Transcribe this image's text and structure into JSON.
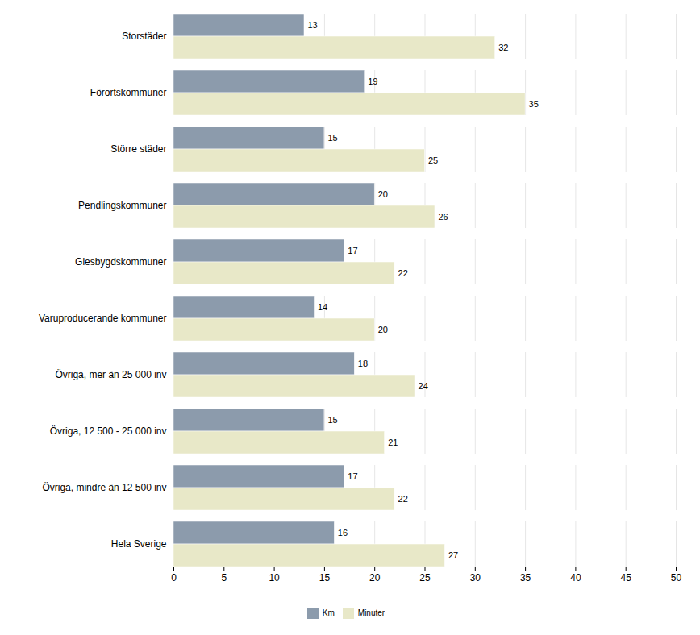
{
  "chart_data": {
    "type": "bar",
    "orientation": "horizontal",
    "categories": [
      "Storstäder",
      "Förortskommuner",
      "Större städer",
      "Pendlingskommuner",
      "Glesbygdskommuner",
      "Varuproducerande kommuner",
      "Övriga, mer än 25 000 inv",
      "Övriga, 12 500 - 25 000 inv",
      "Övriga, mindre än 12 500 inv",
      "Hela Sverige"
    ],
    "series": [
      {
        "name": "Km",
        "color": "#8c9bac",
        "values": [
          13,
          19,
          15,
          20,
          17,
          14,
          18,
          15,
          17,
          16
        ]
      },
      {
        "name": "Minuter",
        "color": "#e8e8c8",
        "values": [
          32,
          35,
          25,
          26,
          22,
          20,
          24,
          21,
          22,
          27
        ]
      }
    ],
    "xlim": [
      0,
      50
    ],
    "xticks": [
      0,
      5,
      10,
      15,
      20,
      25,
      30,
      35,
      40,
      45,
      50
    ],
    "grid": true,
    "data_labels": true,
    "legend": "bottom"
  }
}
